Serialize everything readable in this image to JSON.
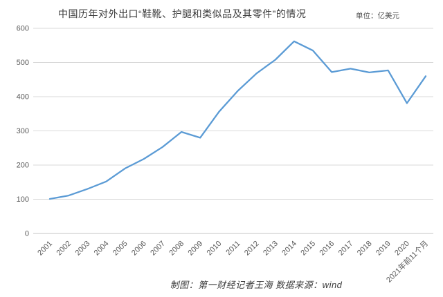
{
  "chart_data": {
    "type": "line",
    "title": "中国历年对外出口“鞋靴、护腿和类似品及其零件”的情况",
    "unit_label": "单位：亿美元",
    "categories": [
      "2001",
      "2002",
      "2003",
      "2004",
      "2005",
      "2006",
      "2007",
      "2008",
      "2009",
      "2010",
      "2011",
      "2012",
      "2013",
      "2014",
      "2015",
      "2016",
      "2017",
      "2018",
      "2019",
      "2020",
      "2021年前11个月"
    ],
    "values": [
      101,
      111,
      130,
      152,
      190,
      218,
      253,
      297,
      280,
      356,
      417,
      468,
      508,
      562,
      535,
      472,
      482,
      471,
      477,
      381,
      460
    ],
    "ylim": [
      0,
      600
    ],
    "yticks": [
      0,
      100,
      200,
      300,
      400,
      500,
      600
    ],
    "grid": true,
    "legend": "none",
    "xlabel": "",
    "ylabel": "",
    "line_color": "#5b9bd5",
    "grid_color": "#d9d9d9",
    "axis_line_color": "#c6c6c6",
    "axis_text_color": "#595959"
  },
  "footer": {
    "caption": "制图：第一财经记者王海  数据来源：wind"
  }
}
